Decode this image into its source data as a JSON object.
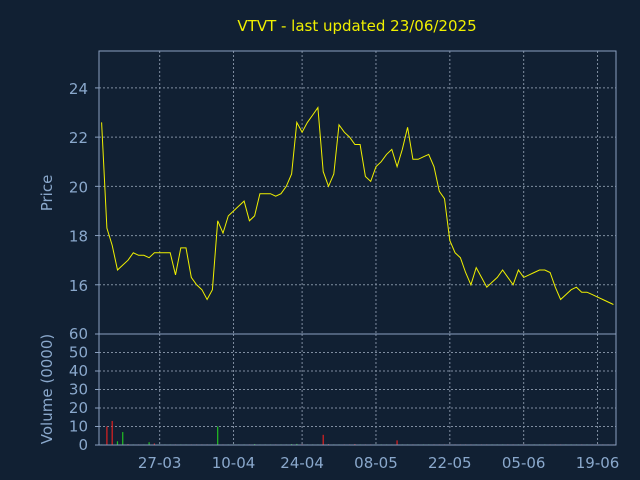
{
  "chart_data": {
    "title": "VTVT - last updated 23/06/2025",
    "colors": {
      "background": "#112033",
      "price_line": "#f0f000",
      "title": "#f0f000",
      "axis_text": "#8aa8cc",
      "frame": "#8aa0c0",
      "grid": "#7f8da0",
      "volume_up": "#22c022",
      "volume_down": "#e02020"
    },
    "price": {
      "type": "line",
      "ylabel": "Price",
      "ylim": [
        14,
        25.5
      ],
      "yticks": [
        "16",
        "18",
        "20",
        "22",
        "24"
      ],
      "grid": true,
      "values": [
        22.6,
        18.3,
        17.6,
        16.6,
        16.8,
        17.0,
        17.3,
        17.2,
        17.2,
        17.1,
        17.3,
        17.3,
        17.3,
        17.3,
        16.4,
        17.5,
        17.5,
        16.3,
        16.0,
        15.8,
        15.4,
        15.8,
        18.6,
        18.1,
        18.8,
        19.0,
        19.2,
        19.4,
        18.6,
        18.8,
        19.7,
        19.7,
        19.7,
        19.6,
        19.7,
        20.0,
        20.5,
        22.6,
        22.2,
        22.6,
        22.9,
        23.2,
        20.6,
        20.0,
        20.5,
        22.5,
        22.2,
        22.0,
        21.7,
        21.7,
        20.4,
        20.2,
        20.8,
        21.0,
        21.3,
        21.5,
        20.8,
        21.5,
        22.4,
        21.1,
        21.1,
        21.2,
        21.3,
        20.8,
        19.8,
        19.5,
        17.8,
        17.3,
        17.1,
        16.5,
        16.0,
        16.7,
        16.3,
        15.9,
        16.1,
        16.3,
        16.6,
        16.3,
        16.0,
        16.6,
        16.3,
        16.4,
        16.5,
        16.6,
        16.6,
        16.5,
        15.9,
        15.4,
        15.6,
        15.8,
        15.9,
        15.7,
        15.7,
        15.6,
        15.5,
        15.4,
        15.3,
        15.2
      ]
    },
    "volume": {
      "type": "bar",
      "ylabel": "Volume (0000)",
      "ylim": [
        0,
        60
      ],
      "yticks": [
        "0",
        "10",
        "20",
        "30",
        "40",
        "50",
        "60"
      ],
      "grid": true,
      "values": [
        0.2,
        10,
        13,
        2,
        7,
        0.5,
        0.3,
        0.2,
        0.1,
        1.5,
        0.8,
        0.2,
        0.3,
        0.2,
        0.3,
        0.1,
        0.2,
        0.1,
        0.1,
        0.1,
        0.1,
        0.1,
        10,
        0.3,
        0.2,
        0.2,
        0.2,
        0.2,
        0.1,
        0.5,
        0.3,
        0.2,
        0.2,
        0.2,
        0.3,
        0.3,
        0.5,
        0.6,
        0.4,
        0.3,
        0.2,
        0.2,
        5.5,
        0.5,
        0.3,
        0.3,
        0.2,
        0.2,
        0.5,
        0.3,
        0.2,
        0.2,
        0.3,
        0.2,
        0.2,
        0.2,
        2.5,
        0.3,
        0.3,
        0.2,
        0.2,
        0.2,
        0.2,
        0.2,
        0.3,
        0.2,
        0.2,
        0.2,
        0.2,
        0.2,
        0.2,
        0.2,
        0.3,
        0.2,
        0.3,
        0.3,
        0.2,
        0.2,
        0.2,
        0.2,
        0.2,
        0.2,
        0.2,
        0.2,
        0.2,
        0.2,
        0.2,
        0.2,
        0.2,
        0.2,
        0.2,
        0.2,
        0.2,
        0.2,
        0.2,
        0.2,
        0.2,
        0.2
      ],
      "direction": [
        "up",
        "down",
        "down",
        "up",
        "up",
        "down",
        "up",
        "down",
        "up",
        "up",
        "down",
        "up",
        "up",
        "up",
        "down",
        "up",
        "up",
        "down",
        "down",
        "down",
        "down",
        "up",
        "up",
        "down",
        "up",
        "up",
        "up",
        "up",
        "down",
        "up",
        "up",
        "up",
        "up",
        "down",
        "up",
        "up",
        "up",
        "up",
        "down",
        "up",
        "up",
        "up",
        "down",
        "down",
        "up",
        "up",
        "down",
        "down",
        "down",
        "up",
        "down",
        "down",
        "up",
        "up",
        "up",
        "up",
        "down",
        "up",
        "up",
        "down",
        "up",
        "up",
        "up",
        "down",
        "down",
        "down",
        "down",
        "down",
        "down",
        "down",
        "down",
        "up",
        "down",
        "down",
        "up",
        "up",
        "up",
        "down",
        "down",
        "up",
        "down",
        "up",
        "up",
        "up",
        "up",
        "down",
        "down",
        "down",
        "up",
        "up",
        "up",
        "down",
        "up",
        "down",
        "down",
        "down",
        "down",
        "down"
      ]
    },
    "x_axis": {
      "tick_labels": [
        "27-03",
        "10-04",
        "24-04",
        "08-05",
        "22-05",
        "05-06",
        "19-06"
      ],
      "tick_index": [
        11,
        25,
        38,
        52,
        66,
        80,
        94
      ]
    }
  }
}
